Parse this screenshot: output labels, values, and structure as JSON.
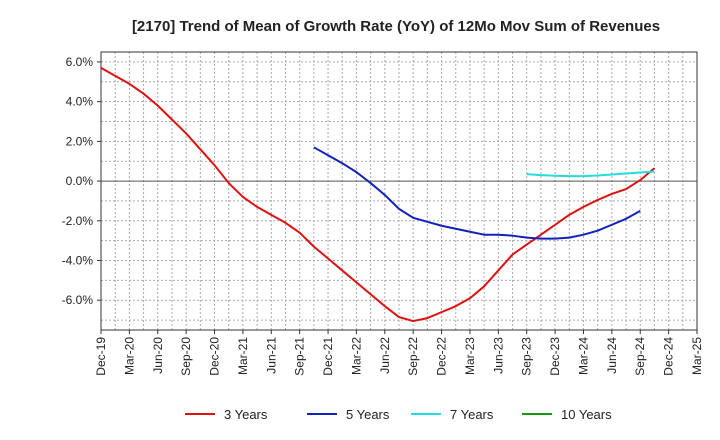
{
  "chart_data": {
    "type": "line",
    "title": "[2170]  Trend of Mean of Growth Rate (YoY) of 12Mo Mov Sum of Revenues",
    "xlabel": "",
    "ylabel": "",
    "ylim": [
      -7.5,
      6.5
    ],
    "y_ticks": [
      6.0,
      4.0,
      2.0,
      0.0,
      -2.0,
      -4.0,
      -6.0
    ],
    "y_tick_labels": [
      "6.0%",
      "4.0%",
      "2.0%",
      "0.0%",
      "-2.0%",
      "-4.0%",
      "-6.0%"
    ],
    "x_tick_labels": [
      "Dec-19",
      "Mar-20",
      "Jun-20",
      "Sep-20",
      "Dec-20",
      "Mar-21",
      "Jun-21",
      "Sep-21",
      "Dec-21",
      "Mar-22",
      "Jun-22",
      "Sep-22",
      "Dec-22",
      "Mar-23",
      "Jun-23",
      "Sep-23",
      "Dec-23",
      "Mar-24",
      "Jun-24",
      "Sep-24",
      "Dec-24",
      "Mar-25"
    ],
    "grid": true,
    "legend_position": "bottom",
    "series": [
      {
        "name": "3 Years",
        "color": "#dd1111",
        "points": [
          [
            0,
            5.7
          ],
          [
            1,
            5.3
          ],
          [
            2,
            4.9
          ],
          [
            3,
            4.4
          ],
          [
            4,
            3.8
          ],
          [
            5,
            3.1
          ],
          [
            6,
            2.4
          ],
          [
            7,
            1.6
          ],
          [
            8,
            0.8
          ],
          [
            9,
            -0.1
          ],
          [
            10,
            -0.8
          ],
          [
            11,
            -1.3
          ],
          [
            12,
            -1.7
          ],
          [
            13,
            -2.1
          ],
          [
            14,
            -2.6
          ],
          [
            15,
            -3.3
          ],
          [
            16,
            -3.9
          ],
          [
            17,
            -4.5
          ],
          [
            18,
            -5.1
          ],
          [
            19,
            -5.7
          ],
          [
            20,
            -6.3
          ],
          [
            21,
            -6.85
          ],
          [
            22,
            -7.05
          ],
          [
            23,
            -6.9
          ],
          [
            24,
            -6.6
          ],
          [
            25,
            -6.3
          ],
          [
            26,
            -5.9
          ],
          [
            27,
            -5.3
          ],
          [
            28,
            -4.5
          ],
          [
            29,
            -3.7
          ],
          [
            30,
            -3.2
          ],
          [
            31,
            -2.7
          ],
          [
            32,
            -2.2
          ],
          [
            33,
            -1.7
          ],
          [
            34,
            -1.3
          ],
          [
            35,
            -0.95
          ],
          [
            36,
            -0.65
          ],
          [
            37,
            -0.4
          ],
          [
            38,
            0.05
          ],
          [
            39,
            0.65
          ]
        ]
      },
      {
        "name": "5 Years",
        "color": "#1122bb",
        "points": [
          [
            15,
            1.7
          ],
          [
            16,
            1.3
          ],
          [
            17,
            0.9
          ],
          [
            18,
            0.45
          ],
          [
            19,
            -0.1
          ],
          [
            20,
            -0.7
          ],
          [
            21,
            -1.4
          ],
          [
            22,
            -1.85
          ],
          [
            23,
            -2.05
          ],
          [
            24,
            -2.25
          ],
          [
            25,
            -2.4
          ],
          [
            26,
            -2.55
          ],
          [
            27,
            -2.7
          ],
          [
            28,
            -2.7
          ],
          [
            29,
            -2.75
          ],
          [
            30,
            -2.85
          ],
          [
            31,
            -2.9
          ],
          [
            32,
            -2.9
          ],
          [
            33,
            -2.85
          ],
          [
            34,
            -2.7
          ],
          [
            35,
            -2.5
          ],
          [
            36,
            -2.2
          ],
          [
            37,
            -1.9
          ],
          [
            38,
            -1.5
          ]
        ]
      },
      {
        "name": "7 Years",
        "color": "#22dddd",
        "points": [
          [
            30,
            0.35
          ],
          [
            31,
            0.3
          ],
          [
            32,
            0.27
          ],
          [
            33,
            0.25
          ],
          [
            34,
            0.25
          ],
          [
            35,
            0.28
          ],
          [
            36,
            0.33
          ],
          [
            37,
            0.38
          ],
          [
            38,
            0.43
          ],
          [
            39,
            0.48
          ]
        ]
      },
      {
        "name": "10 Years",
        "color": "#119911",
        "points": []
      }
    ]
  }
}
